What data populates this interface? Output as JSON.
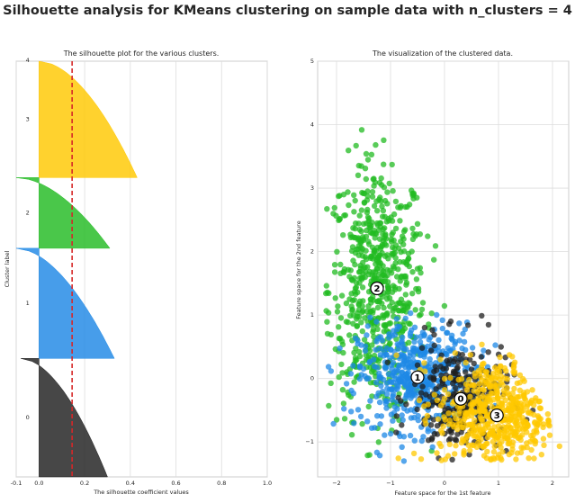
{
  "figure": {
    "suptitle": "Silhouette analysis for KMeans clustering on sample data with n_clusters = 4"
  },
  "chart_data": [
    {
      "type": "area",
      "title": "The silhouette plot for the various clusters.",
      "xlabel": "The silhouette coefficient values",
      "ylabel": "Cluster label",
      "xlim": [
        -0.1,
        1.0
      ],
      "xticks": [
        -0.1,
        0.0,
        0.2,
        0.4,
        0.6,
        0.8,
        1.0
      ],
      "xtick_labels": [
        "-0.1",
        "0.0",
        "0.2",
        "0.4",
        "0.6",
        "0.8",
        "1.0"
      ],
      "grid": true,
      "average_silhouette_score": 0.145,
      "average_line_color": "#d62728",
      "clusters": [
        {
          "label": "0",
          "color": "#1f1f1f",
          "max": 0.3,
          "min": -0.08,
          "extent": [
            0,
            0.57
          ]
        },
        {
          "label": "1",
          "color": "#1e88e5",
          "max": 0.33,
          "min": -0.1,
          "extent": [
            0.57,
            1.1
          ]
        },
        {
          "label": "2",
          "color": "#22bb22",
          "max": 0.31,
          "min": -0.1,
          "extent": [
            1.1,
            1.44
          ]
        },
        {
          "label": "3",
          "color": "#ffc800",
          "max": 0.43,
          "min": 0.0,
          "extent": [
            1.44,
            2.0
          ]
        }
      ],
      "top_label": "4"
    },
    {
      "type": "scatter",
      "title": "The visualization of the clustered data.",
      "xlabel": "Feature space for the 1st feature",
      "ylabel": "Feature space for the 2nd feature",
      "xlim": [
        -2.35,
        2.3
      ],
      "ylim": [
        -1.55,
        5.0
      ],
      "xticks": [
        -2,
        -1,
        0,
        1,
        2
      ],
      "yticks": [
        -1,
        0,
        1,
        2,
        3,
        4,
        5
      ],
      "grid": true,
      "clusters": [
        {
          "label": "0",
          "color": "#1f1f1f",
          "center": [
            0.3,
            -0.32
          ],
          "spread": [
            0.45,
            0.45
          ],
          "count": 260
        },
        {
          "label": "1",
          "color": "#1e88e5",
          "center": [
            -0.5,
            0.02
          ],
          "spread": [
            0.55,
            0.42
          ],
          "count": 520
        },
        {
          "label": "2",
          "color": "#22bb22",
          "center": [
            -1.25,
            1.42
          ],
          "spread": [
            0.45,
            1.0
          ],
          "count": 650
        },
        {
          "label": "3",
          "color": "#ffc800",
          "center": [
            0.97,
            -0.58
          ],
          "spread": [
            0.55,
            0.45
          ],
          "count": 520
        }
      ]
    }
  ]
}
